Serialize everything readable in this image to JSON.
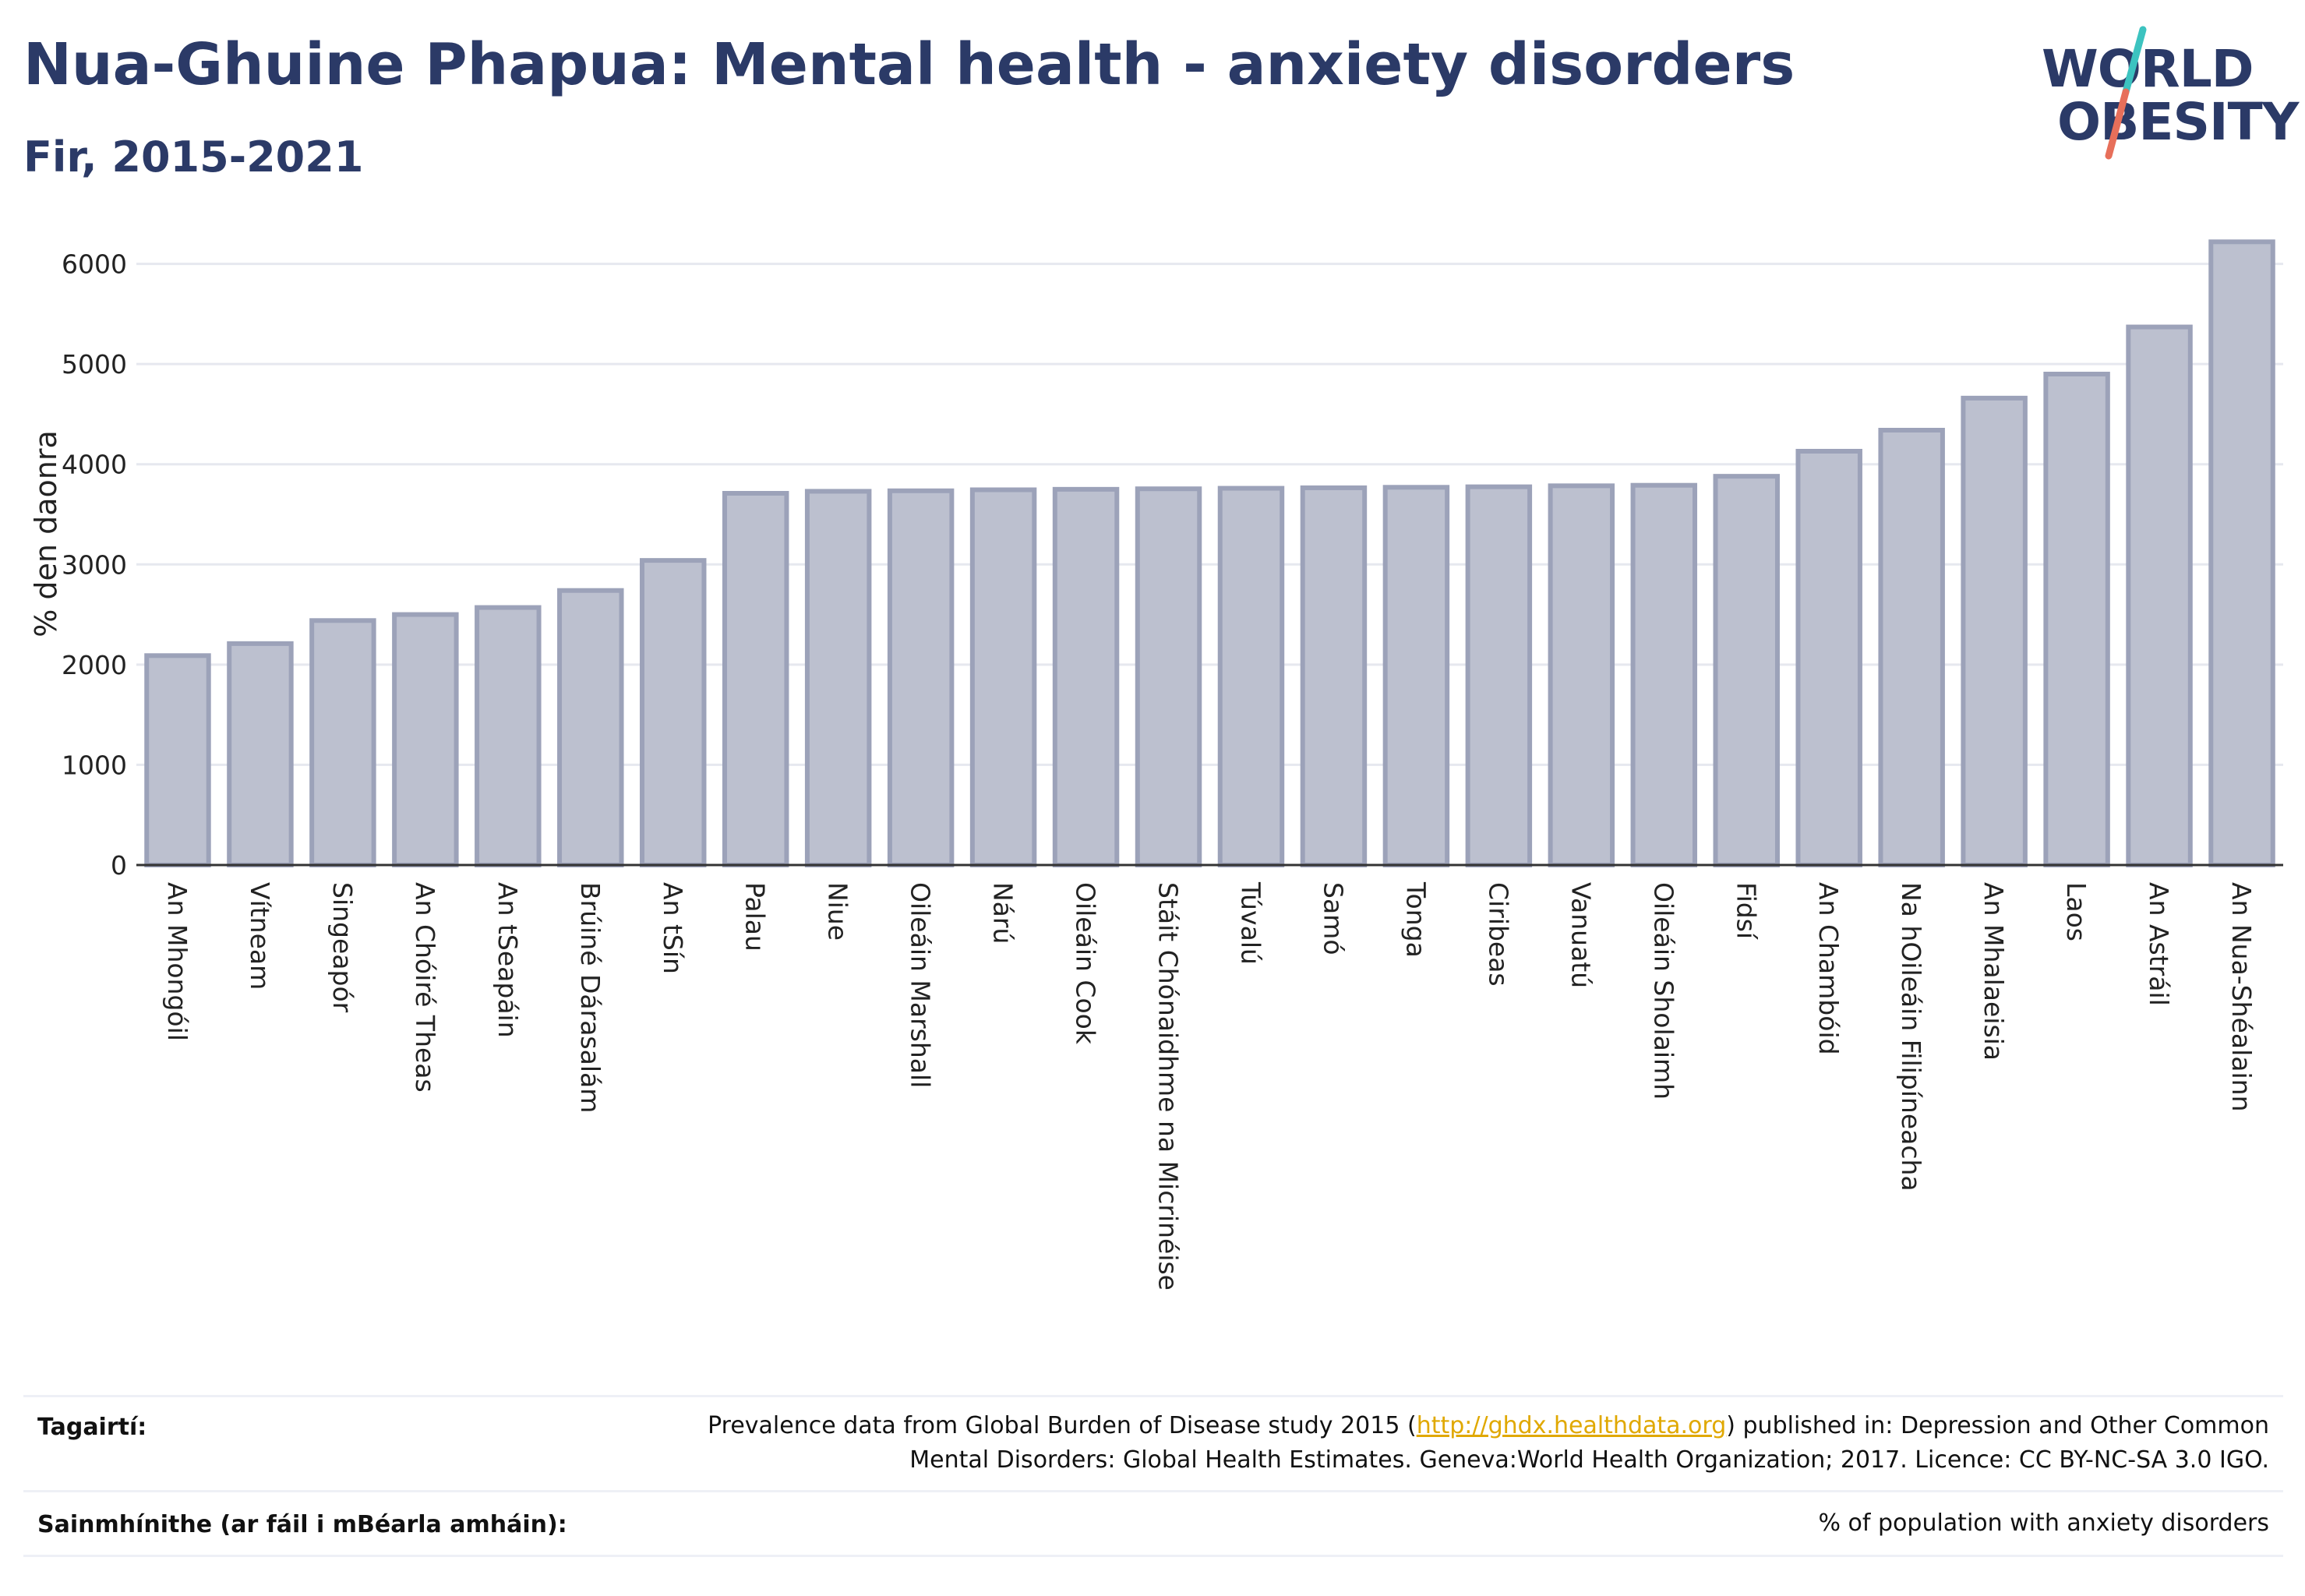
{
  "header": {
    "title": "Nua-Ghuine Phapua: Mental health - anxiety disorders",
    "subtitle": "Fir, 2015-2021"
  },
  "logo": {
    "line1": "WORLD",
    "line2": "OBESITY",
    "slash_color_top": "#3cc3c0",
    "slash_color_bottom": "#e76f5a"
  },
  "colors": {
    "bar_fill": "#bcc0cf",
    "bar_stroke": "#9ca2b9",
    "grid": "#e6e8ef",
    "axis": "#333333"
  },
  "chart_data": {
    "type": "bar",
    "ylabel": "% den daonra",
    "ylim": [
      0,
      6300
    ],
    "yticks": [
      0,
      1000,
      2000,
      3000,
      4000,
      5000,
      6000
    ],
    "grid": true,
    "categories": [
      "An Mhongóil",
      "Vítneam",
      "Singeapór",
      "An Chóiré Theas",
      "An tSeapáin",
      "Brúiné Dárasalám",
      "An tSín",
      "Palau",
      "Niue",
      "Oileáin Marshall",
      "Nárú",
      "Oileáin Cook",
      "Stáit Chónaidhme na Micrinéise",
      "Túvalú",
      "Samó",
      "Tonga",
      "Ciribeas",
      "Vanuatú",
      "Oileáin Sholaimh",
      "Fidsí",
      "An Chambóid",
      "Na hOileáin Filipíneacha",
      "An Mhalaeisia",
      "Laos",
      "An Astráil",
      "An Nua-Shéalainn"
    ],
    "values": [
      2090,
      2210,
      2440,
      2500,
      2570,
      2740,
      3040,
      3710,
      3730,
      3735,
      3745,
      3750,
      3755,
      3760,
      3765,
      3770,
      3775,
      3785,
      3790,
      3880,
      4130,
      4340,
      4660,
      4900,
      5370,
      6220
    ]
  },
  "footer": {
    "references_label": "Tagairtí:",
    "references_pre": "Prevalence data from Global Burden of Disease study 2015 (",
    "references_link": "http://ghdx.healthdata.org",
    "references_post": ") published in: Depression and Other Common",
    "references_line2": "Mental Disorders: Global Health Estimates. Geneva:World Health Organization; 2017. Licence: CC BY-NC-SA 3.0 IGO.",
    "definitions_label": "Sainmhínithe (ar fáil i mBéarla amháin):",
    "definitions_text": "% of population with anxiety disorders"
  }
}
